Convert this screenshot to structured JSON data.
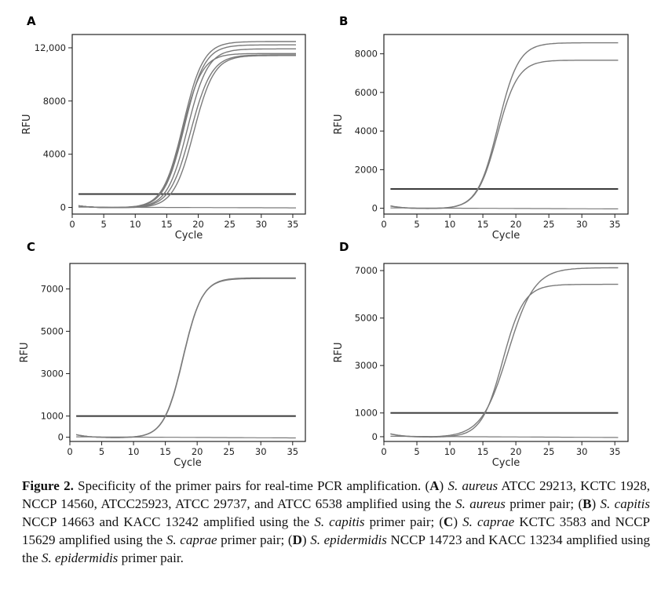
{
  "chart_data": [
    {
      "panel": "A",
      "type": "line",
      "xlabel": "Cycle",
      "ylabel": "RFU",
      "xlim": [
        0,
        37
      ],
      "ylim": [
        -500,
        13000
      ],
      "xticks": [
        0,
        5,
        10,
        15,
        20,
        25,
        30,
        35
      ],
      "yticks": [
        0,
        4000,
        8000,
        12000
      ],
      "ytick_labels": [
        "0",
        "4000",
        "8000",
        "12,000"
      ],
      "threshold": 1000,
      "series": [
        {
          "name": "S. aureus ATCC 29213",
          "plateau": 12500,
          "midpoint": 17.6,
          "slope": 1.6
        },
        {
          "name": "KCTC 1928",
          "plateau": 12250,
          "midpoint": 17.8,
          "slope": 1.6
        },
        {
          "name": "NCCP 14560",
          "plateau": 11950,
          "midpoint": 18.3,
          "slope": 1.6
        },
        {
          "name": "ATCC25923",
          "plateau": 11600,
          "midpoint": 17.5,
          "slope": 1.55
        },
        {
          "name": "ATCC 29737",
          "plateau": 11500,
          "midpoint": 18.8,
          "slope": 1.65
        },
        {
          "name": "ATCC 6538",
          "plateau": 11450,
          "midpoint": 19.3,
          "slope": 1.6
        }
      ]
    },
    {
      "panel": "B",
      "type": "line",
      "xlabel": "Cycle",
      "ylabel": "RFU",
      "xlim": [
        0,
        37
      ],
      "ylim": [
        -300,
        9000
      ],
      "xticks": [
        0,
        5,
        10,
        15,
        20,
        25,
        30,
        35
      ],
      "yticks": [
        0,
        2000,
        4000,
        6000,
        8000
      ],
      "ytick_labels": [
        "0",
        "2000",
        "4000",
        "6000",
        "8000"
      ],
      "threshold": 1000,
      "series": [
        {
          "name": "S. capitis NCCP 14663",
          "plateau": 8600,
          "midpoint": 17.3,
          "slope": 1.55
        },
        {
          "name": "KACC 13242",
          "plateau": 7700,
          "midpoint": 17.2,
          "slope": 1.55
        }
      ]
    },
    {
      "panel": "C",
      "type": "line",
      "xlabel": "Cycle",
      "ylabel": "RFU",
      "xlim": [
        0,
        37
      ],
      "ylim": [
        -200,
        8200
      ],
      "xticks": [
        0,
        5,
        10,
        15,
        20,
        25,
        30,
        35
      ],
      "yticks": [
        0,
        1000,
        3000,
        5000,
        7000
      ],
      "ytick_labels": [
        "0",
        "1000",
        "3000",
        "5000",
        "7000"
      ],
      "threshold": 1000,
      "series": [
        {
          "name": "S. caprae KCTC 3583",
          "plateau": 7550,
          "midpoint": 17.8,
          "slope": 1.5
        },
        {
          "name": "NCCP 15629",
          "plateau": 7520,
          "midpoint": 17.75,
          "slope": 1.5
        }
      ]
    },
    {
      "panel": "D",
      "type": "line",
      "xlabel": "Cycle",
      "ylabel": "RFU",
      "xlim": [
        0,
        37
      ],
      "ylim": [
        -200,
        7300
      ],
      "xticks": [
        0,
        5,
        10,
        15,
        20,
        25,
        30,
        35
      ],
      "yticks": [
        0,
        1000,
        3000,
        5000,
        7000
      ],
      "ytick_labels": [
        "0",
        "1000",
        "3000",
        "5000",
        "7000"
      ],
      "threshold": 1000,
      "series": [
        {
          "name": "S. epidermidis NCCP 14723",
          "plateau": 7150,
          "midpoint": 18.8,
          "slope": 2.0
        },
        {
          "name": "KACC 13234",
          "plateau": 6450,
          "midpoint": 18.0,
          "slope": 1.6
        }
      ]
    }
  ],
  "caption": {
    "label": "Figure 2.",
    "intro": " Specificity of the primer pairs for real-time PCR amplification. (",
    "a_key": "A",
    "a_sp": "S. aureus",
    "a_text": " ATCC 29213, KCTC 1928, NCCP 14560, ATCC25923, ATCC 29737, and ATCC 6538 amplified using the ",
    "a_sp2": "S. aureus",
    "a_end": " primer pair; (",
    "b_key": "B",
    "b_sp": "S. capitis",
    "b_text": " NCCP 14663 and KACC 13242 amplified using the ",
    "b_sp2": "S. capitis",
    "b_end": " primer pair; (",
    "c_key": "C",
    "c_sp": "S. caprae",
    "c_text": " KCTC 3583 and NCCP 15629 amplified using the ",
    "c_sp2": "S. caprae",
    "c_end": " primer pair; (",
    "d_key": "D",
    "d_sp": "S. epidermidis",
    "d_text": " NCCP 14723 and KACC 13234 amplified using the ",
    "d_sp2": "S. epidermidis",
    "d_end": " primer pair."
  },
  "colors": {
    "curve": "#7a7a7a",
    "threshold": "#3a3a3a",
    "axis": "#222222"
  }
}
